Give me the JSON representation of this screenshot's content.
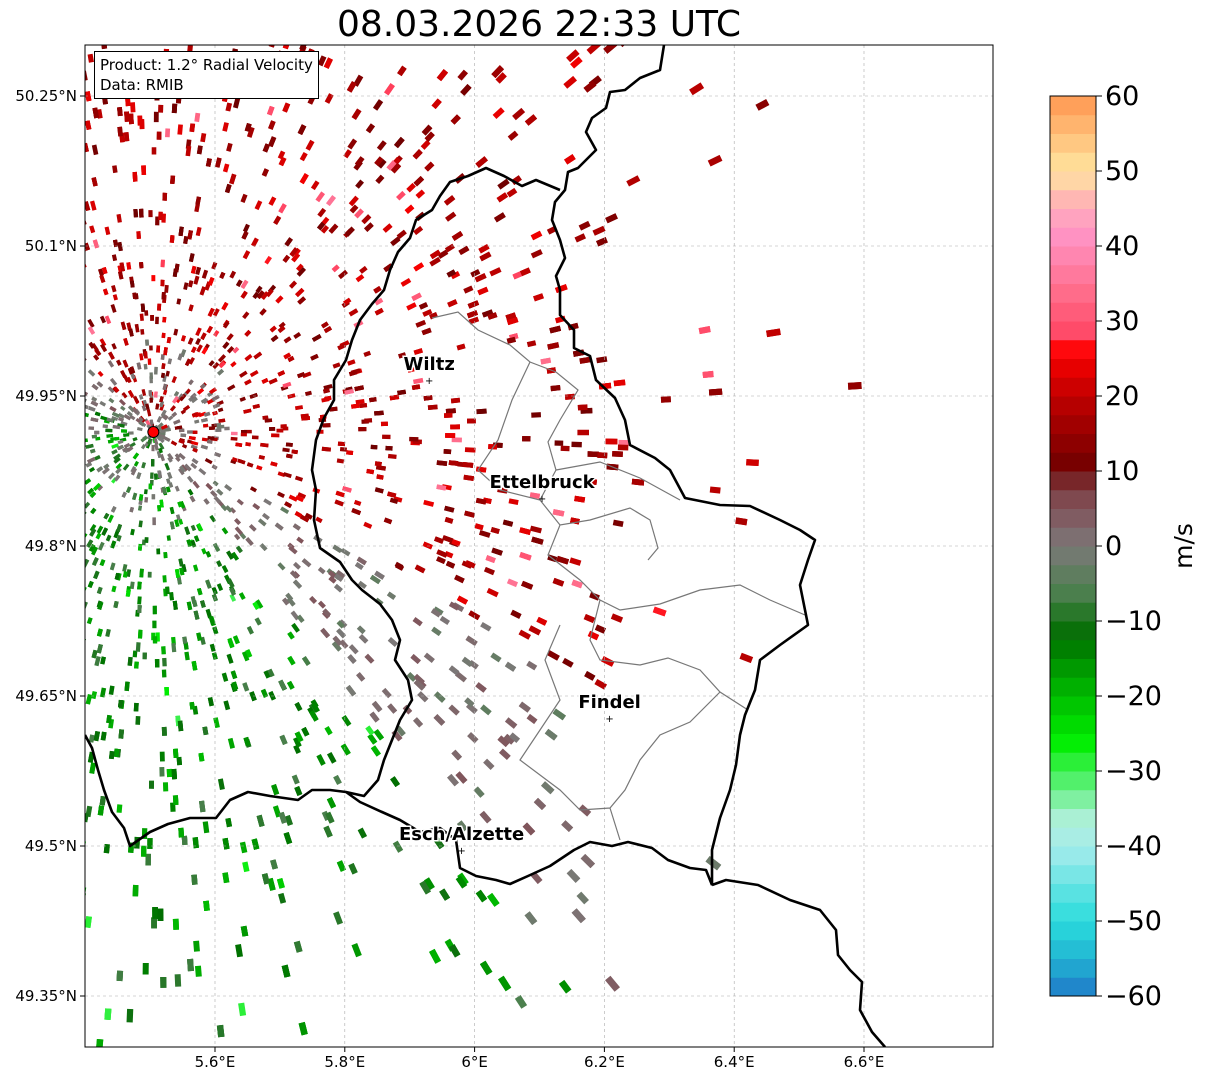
{
  "title": "08.03.2026 22:33 UTC",
  "info_box": {
    "product": "Product: 1.2° Radial Velocity",
    "data": "Data: RMIB"
  },
  "map": {
    "lon_ticks": [
      {
        "value": 5.6,
        "label": "5.6°E"
      },
      {
        "value": 5.8,
        "label": "5.8°E"
      },
      {
        "value": 6.0,
        "label": "6°E"
      },
      {
        "value": 6.2,
        "label": "6.2°E"
      },
      {
        "value": 6.4,
        "label": "6.4°E"
      },
      {
        "value": 6.6,
        "label": "6.6°E"
      }
    ],
    "lat_ticks": [
      {
        "value": 50.25,
        "label": "50.25°N"
      },
      {
        "value": 50.1,
        "label": "50.1°N"
      },
      {
        "value": 49.95,
        "label": "49.95°N"
      },
      {
        "value": 49.8,
        "label": "49.8°N"
      },
      {
        "value": 49.65,
        "label": "49.65°N"
      },
      {
        "value": 49.5,
        "label": "49.5°N"
      },
      {
        "value": 49.35,
        "label": "49.35°N"
      }
    ],
    "extent": {
      "lon_min": 5.4,
      "lon_max": 6.79,
      "lat_min": 49.3,
      "lat_max": 50.3
    },
    "radar_site": {
      "lon": 5.505,
      "lat": 49.914,
      "color": "#ff0000"
    },
    "cities": [
      {
        "name": "Wiltz",
        "lon": 5.93,
        "lat": 49.966
      },
      {
        "name": "Ettelbruck",
        "lon": 6.104,
        "lat": 49.848
      },
      {
        "name": "Findel",
        "lon": 6.208,
        "lat": 49.628
      },
      {
        "name": "Esch/Alzette",
        "lon": 5.98,
        "lat": 49.496
      }
    ]
  },
  "colorbar": {
    "label": "m/s",
    "min": -60,
    "max": 60,
    "tick_values": [
      60,
      50,
      40,
      30,
      20,
      10,
      0,
      -10,
      -20,
      -30,
      -40,
      -50,
      -60
    ],
    "tick_labels": [
      "60",
      "50",
      "40",
      "30",
      "20",
      "10",
      "0",
      "−10",
      "−20",
      "−30",
      "−40",
      "−50",
      "−60"
    ],
    "stops": [
      {
        "v": -60,
        "c": "#1f78c8"
      },
      {
        "v": -55,
        "c": "#22b4d2"
      },
      {
        "v": -50,
        "c": "#2adcdc"
      },
      {
        "v": -40,
        "c": "#a8ecec"
      },
      {
        "v": -36,
        "c": "#aaf0d2"
      },
      {
        "v": -32,
        "c": "#5ef07a"
      },
      {
        "v": -26,
        "c": "#00ee00"
      },
      {
        "v": -18,
        "c": "#00aa00"
      },
      {
        "v": -12,
        "c": "#006e00"
      },
      {
        "v": -6,
        "c": "#4e8050"
      },
      {
        "v": 0,
        "c": "#7c7878"
      },
      {
        "v": 4,
        "c": "#805a60"
      },
      {
        "v": 8,
        "c": "#7e3c42"
      },
      {
        "v": 10,
        "c": "#6e0000"
      },
      {
        "v": 20,
        "c": "#c00000"
      },
      {
        "v": 26,
        "c": "#ff0000"
      },
      {
        "v": 28,
        "c": "#ff4664"
      },
      {
        "v": 34,
        "c": "#ff6e8c"
      },
      {
        "v": 42,
        "c": "#ff96c8"
      },
      {
        "v": 46,
        "c": "#ffb4b4"
      },
      {
        "v": 50,
        "c": "#ffe6a0"
      },
      {
        "v": 60,
        "c": "#ff9650"
      }
    ]
  }
}
